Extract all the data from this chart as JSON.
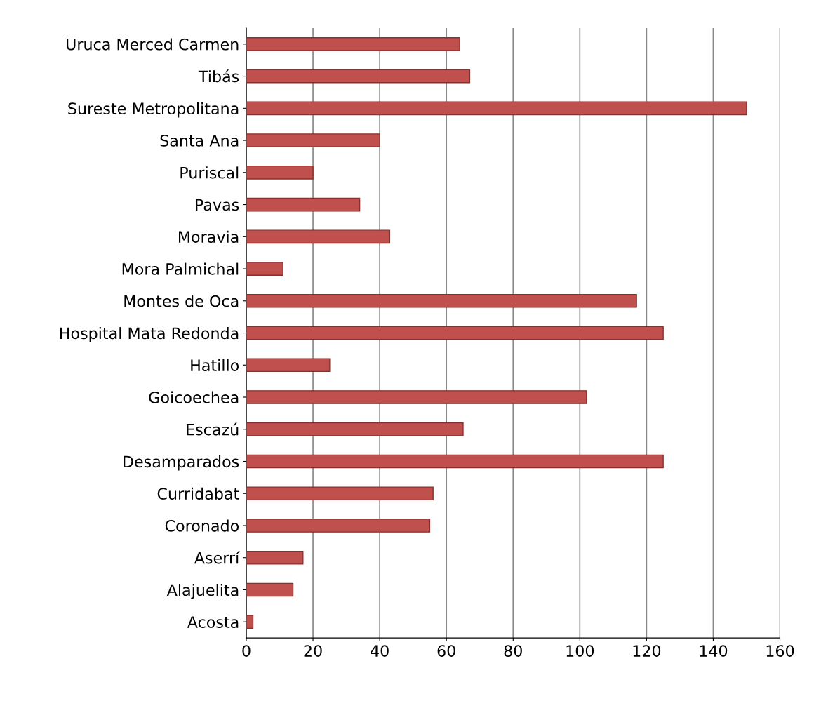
{
  "chart_data": {
    "type": "bar",
    "orientation": "horizontal",
    "categories": [
      "Uruca Merced Carmen",
      "Tibás",
      "Sureste Metropolitana",
      "Santa Ana",
      "Puriscal",
      "Pavas",
      "Moravia",
      "Mora Palmichal",
      "Montes de Oca",
      "Hospital Mata Redonda",
      "Hatillo",
      "Goicoechea",
      "Escazú",
      "Desamparados",
      "Curridabat",
      "Coronado",
      "Aserrí",
      "Alajuelita",
      "Acosta"
    ],
    "values": [
      64,
      67,
      150,
      40,
      20,
      34,
      43,
      11,
      117,
      125,
      25,
      102,
      65,
      125,
      56,
      55,
      17,
      14,
      2
    ],
    "color": "#c0504d",
    "xlim": [
      0,
      160
    ],
    "xticks": [
      0,
      20,
      40,
      60,
      80,
      100,
      120,
      140,
      160
    ],
    "grid": "x",
    "legend": false
  }
}
